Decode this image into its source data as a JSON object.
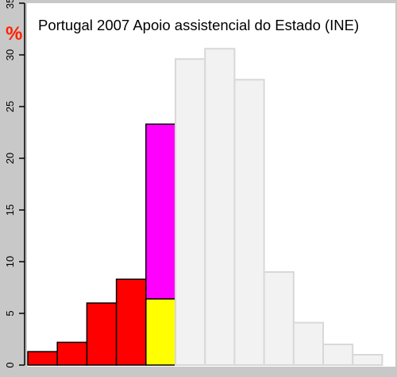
{
  "chart_data": {
    "type": "bar",
    "title": "Portugal 2007 Apoio assistencial do Estado (INE)",
    "ylabel": "%",
    "ylim": [
      0,
      35
    ],
    "yticks": [
      0,
      5,
      10,
      15,
      20,
      25,
      30,
      35
    ],
    "grid": false,
    "bars": [
      {
        "index": 1,
        "segments": [
          {
            "value": 1.3,
            "color": "#ff0000"
          }
        ]
      },
      {
        "index": 2,
        "segments": [
          {
            "value": 2.2,
            "color": "#ff0000"
          }
        ]
      },
      {
        "index": 3,
        "segments": [
          {
            "value": 6.0,
            "color": "#ff0000"
          }
        ]
      },
      {
        "index": 4,
        "segments": [
          {
            "value": 8.3,
            "color": "#ff0000"
          }
        ]
      },
      {
        "index": 5,
        "segments": [
          {
            "value": 6.4,
            "color": "#ffff00"
          },
          {
            "value": 16.9,
            "color": "#ff00ff"
          }
        ]
      },
      {
        "index": 6,
        "segments": [
          {
            "value": 29.6,
            "color": "#f2f2f2"
          }
        ]
      },
      {
        "index": 7,
        "segments": [
          {
            "value": 30.6,
            "color": "#f2f2f2"
          }
        ]
      },
      {
        "index": 8,
        "segments": [
          {
            "value": 27.6,
            "color": "#f2f2f2"
          }
        ]
      },
      {
        "index": 9,
        "segments": [
          {
            "value": 9.0,
            "color": "#f2f2f2"
          }
        ]
      },
      {
        "index": 10,
        "segments": [
          {
            "value": 4.1,
            "color": "#f2f2f2"
          }
        ]
      },
      {
        "index": 11,
        "segments": [
          {
            "value": 2.0,
            "color": "#f2f2f2"
          }
        ]
      },
      {
        "index": 12,
        "segments": [
          {
            "value": 1.0,
            "color": "#f2f2f2"
          }
        ]
      }
    ]
  },
  "colors": {
    "background": "#c8c8c8",
    "plot_background": "#ffffff",
    "ylabel_color": "#ff2200",
    "light_bar_stroke": "#d8d8d8",
    "dark_bar_stroke": "#000000"
  }
}
